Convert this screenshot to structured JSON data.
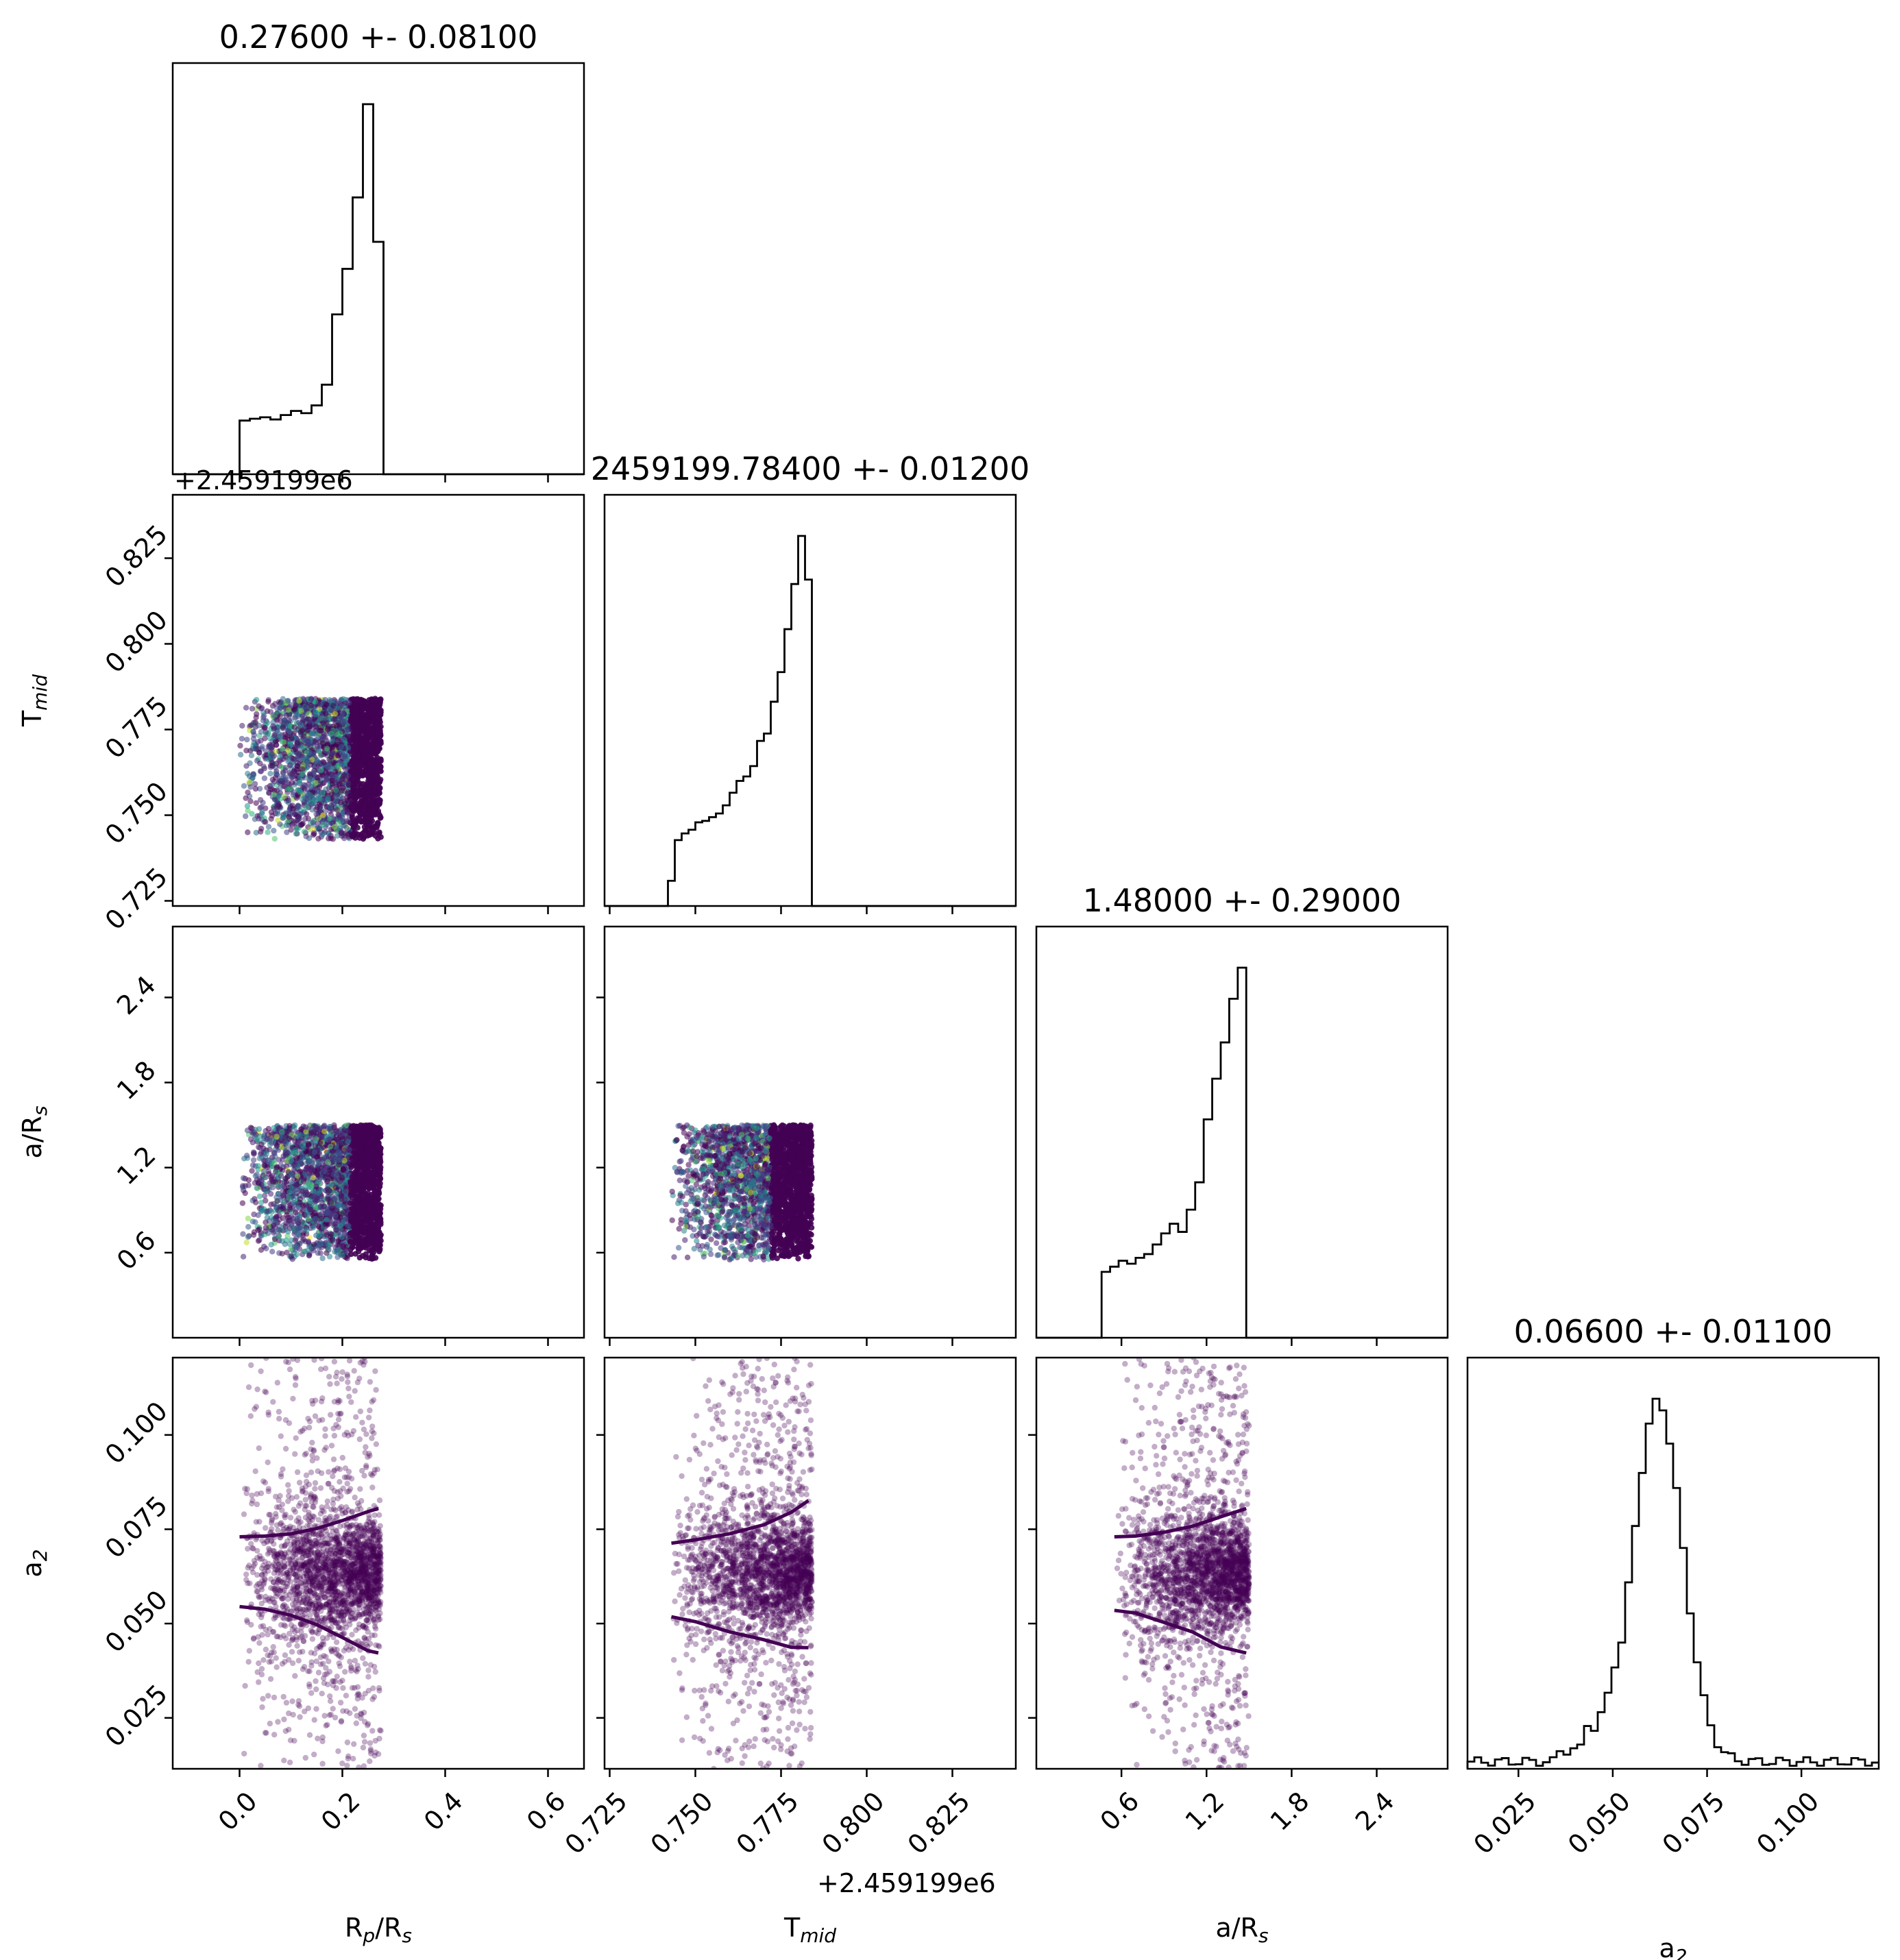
{
  "chart_data": {
    "type": "scatter",
    "subtype": "corner-plot",
    "n_params": 4,
    "params": [
      {
        "key": "rp",
        "xlabel": "R_p/R_s",
        "title": "0.27600 +- 0.08100",
        "range": [
          -0.13,
          0.67
        ],
        "ticks": [
          0.0,
          0.2,
          0.4,
          0.6
        ],
        "tick_labels": [
          "0.0",
          "0.2",
          "0.4",
          "0.6"
        ],
        "offset": "",
        "hist": {
          "bins": [
            -0.13,
            -0.11,
            -0.09,
            -0.07,
            -0.05,
            -0.03,
            -0.01,
            0.0,
            0.02,
            0.04,
            0.06,
            0.08,
            0.1,
            0.12,
            0.14,
            0.16,
            0.18,
            0.2,
            0.22,
            0.24,
            0.26,
            0.28,
            0.67
          ],
          "counts": [
            0,
            0,
            0,
            0,
            0,
            0,
            0,
            0.145,
            0.15,
            0.154,
            0.148,
            0.16,
            0.171,
            0.165,
            0.186,
            0.242,
            0.432,
            0.555,
            0.748,
            1.0,
            0.628,
            0,
            0
          ]
        }
      },
      {
        "key": "tmid",
        "xlabel": "T_mid",
        "title": "2459199.78400 +- 0.01200",
        "range": [
          0.7235,
          0.8435
        ],
        "ticks": [
          0.725,
          0.75,
          0.775,
          0.8,
          0.825
        ],
        "tick_labels": [
          "0.725",
          "0.750",
          "0.775",
          "0.800",
          "0.825"
        ],
        "offset": "+2.459199e6",
        "hist": {
          "bins": [
            0.7235,
            0.742,
            0.744,
            0.746,
            0.748,
            0.75,
            0.752,
            0.754,
            0.756,
            0.758,
            0.76,
            0.762,
            0.764,
            0.766,
            0.768,
            0.77,
            0.772,
            0.774,
            0.776,
            0.778,
            0.78,
            0.782,
            0.784,
            0.786,
            0.8435
          ],
          "counts": [
            0,
            0.068,
            0.178,
            0.196,
            0.206,
            0.226,
            0.23,
            0.24,
            0.25,
            0.272,
            0.306,
            0.338,
            0.35,
            0.378,
            0.446,
            0.466,
            0.552,
            0.632,
            0.748,
            0.87,
            1.0,
            0.882,
            0,
            0
          ]
        }
      },
      {
        "key": "ars",
        "xlabel": "a/R_s",
        "title": "1.48000 +- 0.29000",
        "range": [
          0.0,
          2.9
        ],
        "ticks": [
          0.6,
          1.2,
          1.8,
          2.4
        ],
        "tick_labels": [
          "0.6",
          "1.2",
          "1.8",
          "2.4"
        ],
        "offset": "",
        "hist": {
          "bins": [
            0.0,
            0.46,
            0.52,
            0.58,
            0.64,
            0.7,
            0.76,
            0.82,
            0.88,
            0.94,
            1.0,
            1.06,
            1.12,
            1.18,
            1.24,
            1.3,
            1.36,
            1.42,
            1.48,
            2.9
          ],
          "counts": [
            0,
            0.178,
            0.192,
            0.208,
            0.2,
            0.216,
            0.226,
            0.252,
            0.282,
            0.308,
            0.286,
            0.346,
            0.42,
            0.59,
            0.7,
            0.798,
            0.916,
            1.0,
            0
          ]
        }
      },
      {
        "key": "a2",
        "xlabel": "a_2",
        "title": "0.06600 +- 0.01100",
        "range": [
          0.0115,
          0.1205
        ],
        "ticks": [
          0.025,
          0.05,
          0.075,
          0.1
        ],
        "tick_labels": [
          "0.025",
          "0.050",
          "0.075",
          "0.100"
        ],
        "offset": "",
        "hist_peak": 0.062,
        "hist_sigma": 0.0065
      }
    ],
    "title_rows_offset_label": "+2.459199e6",
    "colormap": [
      "#440154",
      "#482173",
      "#433e85",
      "#38598c",
      "#2d708e",
      "#25858e",
      "#1e9b8a",
      "#2ab07f",
      "#52c569",
      "#86d549",
      "#c2df23",
      "#fde725"
    ],
    "density_color": "#440154",
    "hist_color": "#000000",
    "scatter": [
      {
        "row": 1,
        "col": 0,
        "x_range": [
          0.0,
          0.275
        ],
        "y_range": [
          0.743,
          0.784
        ],
        "n": 2600,
        "dense_x": [
          0.215,
          0.275
        ]
      },
      {
        "row": 2,
        "col": 0,
        "x_range": [
          0.0,
          0.275
        ],
        "y_range": [
          0.55,
          1.5
        ],
        "n": 2600,
        "dense_x": [
          0.215,
          0.275
        ]
      },
      {
        "row": 2,
        "col": 1,
        "x_range": [
          0.743,
          0.784
        ],
        "y_range": [
          0.55,
          1.5
        ],
        "n": 2600,
        "dense_x": [
          0.772,
          0.784
        ]
      },
      {
        "row": 3,
        "col": 0,
        "x_range": [
          0.0,
          0.275
        ],
        "y_range": [
          0.0115,
          0.1205
        ],
        "n": 2400,
        "mean": 0.063,
        "sigma": 0.009,
        "contour_upper": [
          [
            0.0,
            0.073
          ],
          [
            0.05,
            0.0732
          ],
          [
            0.1,
            0.0738
          ],
          [
            0.15,
            0.0752
          ],
          [
            0.2,
            0.0773
          ],
          [
            0.25,
            0.0797
          ],
          [
            0.27,
            0.0805
          ]
        ],
        "contour_lower": [
          [
            0.0,
            0.0545
          ],
          [
            0.05,
            0.0538
          ],
          [
            0.1,
            0.0522
          ],
          [
            0.15,
            0.0497
          ],
          [
            0.2,
            0.0463
          ],
          [
            0.25,
            0.0428
          ],
          [
            0.27,
            0.0422
          ]
        ]
      },
      {
        "row": 3,
        "col": 1,
        "x_range": [
          0.743,
          0.784
        ],
        "y_range": [
          0.0115,
          0.1205
        ],
        "n": 2400,
        "mean": 0.063,
        "sigma": 0.009,
        "contour_upper": [
          [
            0.743,
            0.0713
          ],
          [
            0.75,
            0.0722
          ],
          [
            0.76,
            0.0738
          ],
          [
            0.77,
            0.0762
          ],
          [
            0.778,
            0.0795
          ],
          [
            0.783,
            0.0826
          ]
        ],
        "contour_lower": [
          [
            0.743,
            0.0518
          ],
          [
            0.75,
            0.0505
          ],
          [
            0.76,
            0.0478
          ],
          [
            0.77,
            0.0457
          ],
          [
            0.778,
            0.0437
          ],
          [
            0.783,
            0.0436
          ]
        ]
      },
      {
        "row": 3,
        "col": 2,
        "x_range": [
          0.55,
          1.5
        ],
        "y_range": [
          0.0115,
          0.1205
        ],
        "n": 2400,
        "mean": 0.063,
        "sigma": 0.009,
        "contour_upper": [
          [
            0.55,
            0.073
          ],
          [
            0.7,
            0.0732
          ],
          [
            0.9,
            0.0742
          ],
          [
            1.1,
            0.0758
          ],
          [
            1.3,
            0.0783
          ],
          [
            1.48,
            0.0805
          ]
        ],
        "contour_lower": [
          [
            0.55,
            0.0535
          ],
          [
            0.7,
            0.0528
          ],
          [
            0.9,
            0.0503
          ],
          [
            1.1,
            0.0478
          ],
          [
            1.3,
            0.0438
          ],
          [
            1.48,
            0.0422
          ]
        ]
      }
    ]
  }
}
